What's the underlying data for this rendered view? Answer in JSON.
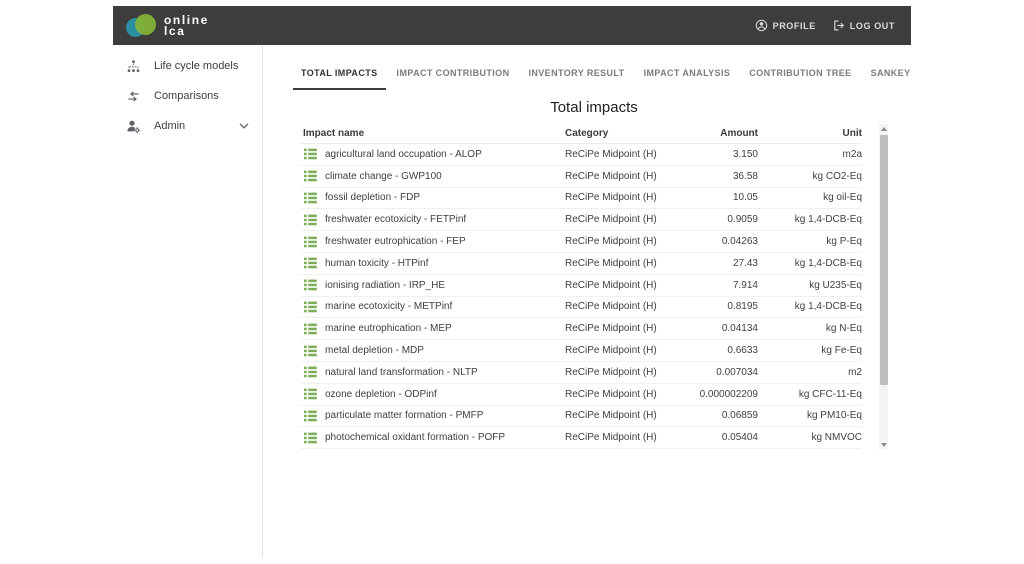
{
  "header": {
    "logo": {
      "line1": "online",
      "line2": "lca"
    },
    "profile_label": "PROFILE",
    "logout_label": "LOG OUT"
  },
  "sidebar": {
    "items": [
      {
        "label": "Life cycle models",
        "icon": "hierarchy-icon"
      },
      {
        "label": "Comparisons",
        "icon": "compare-arrows-icon"
      },
      {
        "label": "Admin",
        "icon": "admin-icon",
        "has_submenu": true
      }
    ]
  },
  "tabs": [
    {
      "label": "TOTAL IMPACTS",
      "active": true
    },
    {
      "label": "IMPACT CONTRIBUTION",
      "active": false
    },
    {
      "label": "INVENTORY RESULT",
      "active": false
    },
    {
      "label": "IMPACT ANALYSIS",
      "active": false
    },
    {
      "label": "CONTRIBUTION TREE",
      "active": false
    },
    {
      "label": "SANKEY",
      "active": false
    }
  ],
  "main": {
    "title": "Total impacts",
    "table": {
      "columns": [
        "Impact name",
        "Category",
        "Amount",
        "Unit"
      ],
      "row_icon": "list-icon",
      "rows": [
        {
          "name": "agricultural land occupation - ALOP",
          "category": "ReCiPe Midpoint (H)",
          "amount": "3.150",
          "unit": "m2a"
        },
        {
          "name": "climate change - GWP100",
          "category": "ReCiPe Midpoint (H)",
          "amount": "36.58",
          "unit": "kg CO2-Eq"
        },
        {
          "name": "fossil depletion - FDP",
          "category": "ReCiPe Midpoint (H)",
          "amount": "10.05",
          "unit": "kg oil-Eq"
        },
        {
          "name": "freshwater ecotoxicity - FETPinf",
          "category": "ReCiPe Midpoint (H)",
          "amount": "0.9059",
          "unit": "kg 1,4-DCB-Eq"
        },
        {
          "name": "freshwater eutrophication - FEP",
          "category": "ReCiPe Midpoint (H)",
          "amount": "0.04263",
          "unit": "kg P-Eq"
        },
        {
          "name": "human toxicity - HTPinf",
          "category": "ReCiPe Midpoint (H)",
          "amount": "27.43",
          "unit": "kg 1,4-DCB-Eq"
        },
        {
          "name": "ionising radiation - IRP_HE",
          "category": "ReCiPe Midpoint (H)",
          "amount": "7.914",
          "unit": "kg U235-Eq"
        },
        {
          "name": "marine ecotoxicity - METPinf",
          "category": "ReCiPe Midpoint (H)",
          "amount": "0.8195",
          "unit": "kg 1,4-DCB-Eq"
        },
        {
          "name": "marine eutrophication - MEP",
          "category": "ReCiPe Midpoint (H)",
          "amount": "0.04134",
          "unit": "kg N-Eq"
        },
        {
          "name": "metal depletion - MDP",
          "category": "ReCiPe Midpoint (H)",
          "amount": "0.6633",
          "unit": "kg Fe-Eq"
        },
        {
          "name": "natural land transformation - NLTP",
          "category": "ReCiPe Midpoint (H)",
          "amount": "0.007034",
          "unit": "m2"
        },
        {
          "name": "ozone depletion - ODPinf",
          "category": "ReCiPe Midpoint (H)",
          "amount": "0.000002209",
          "unit": "kg CFC-11-Eq"
        },
        {
          "name": "particulate matter formation - PMFP",
          "category": "ReCiPe Midpoint (H)",
          "amount": "0.06859",
          "unit": "kg PM10-Eq"
        },
        {
          "name": "photochemical oxidant formation - POFP",
          "category": "ReCiPe Midpoint (H)",
          "amount": "0.05404",
          "unit": "kg NMVOC"
        }
      ]
    }
  },
  "colors": {
    "header_bg": "#3d3d3c",
    "accent_green": "#7cae58",
    "logo_teal": "#2a8fa0",
    "logo_green": "#83b335",
    "active_tab_underline": "#3c3c3c"
  }
}
